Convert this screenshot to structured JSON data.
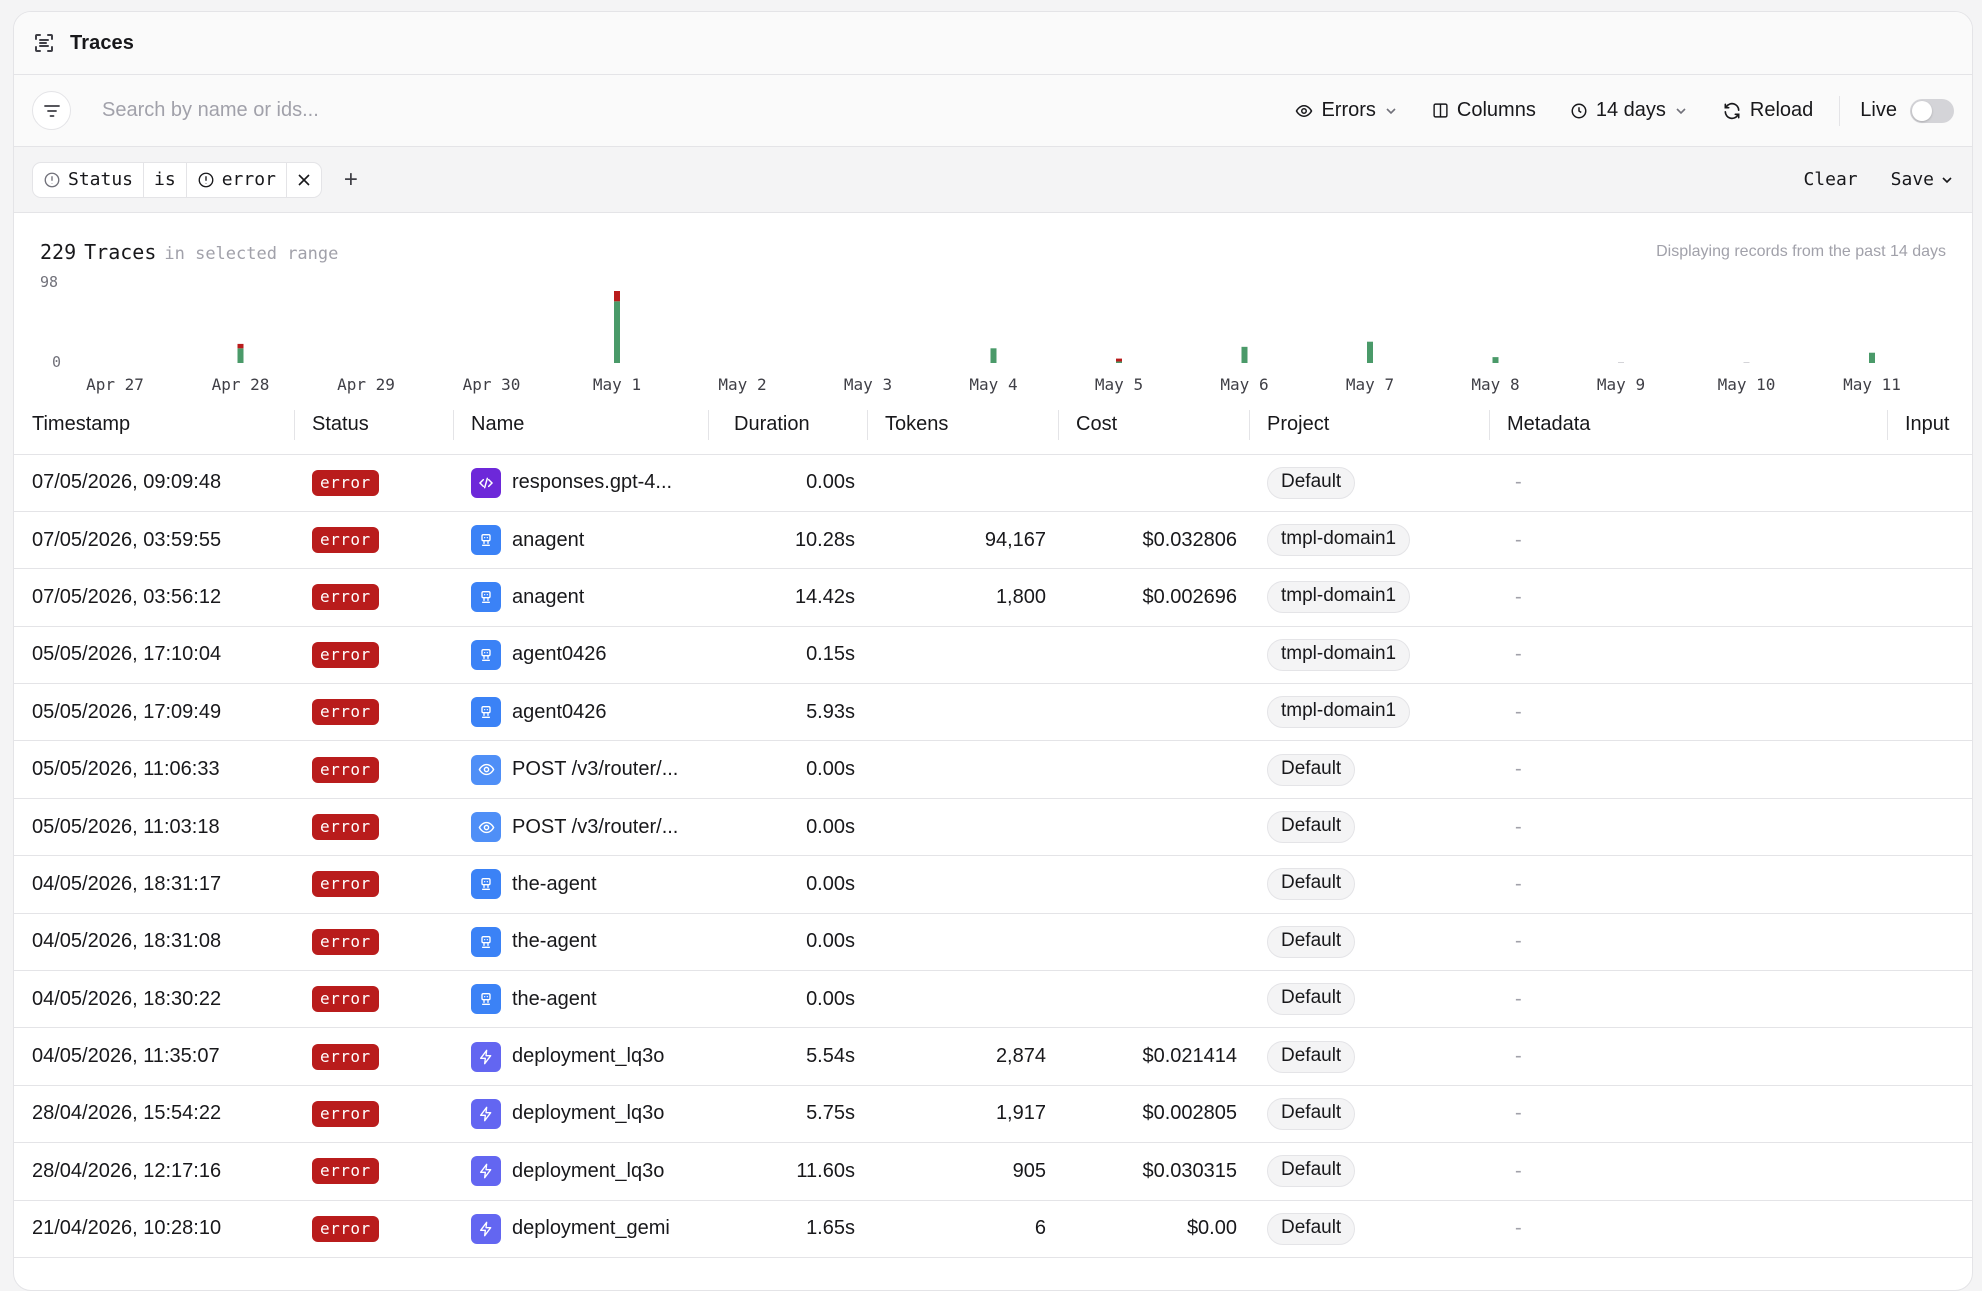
{
  "page": {
    "title": "Traces"
  },
  "toolbar": {
    "search_placeholder": "Search by name or ids...",
    "errors_label": "Errors",
    "columns_label": "Columns",
    "range_label": "14 days",
    "reload_label": "Reload",
    "live_label": "Live",
    "live_on": false
  },
  "filter": {
    "field": "Status",
    "operator": "is",
    "value": "error",
    "add_label": "+",
    "clear_label": "Clear",
    "save_label": "Save"
  },
  "summary": {
    "count": "229",
    "count_label": "Traces",
    "range_note": "in selected range",
    "display_note": "Displaying records from the past 14 days"
  },
  "chart_data": {
    "type": "bar",
    "categories": [
      "Apr 27",
      "Apr 28",
      "Apr 29",
      "Apr 30",
      "May 1",
      "May 2",
      "May 3",
      "May 4",
      "May 5",
      "May 6",
      "May 7",
      "May 8",
      "May 9",
      "May 10",
      "May 11"
    ],
    "series": [
      {
        "values": [
          0,
          20,
          0,
          0,
          84,
          0,
          0,
          20,
          2,
          22,
          29,
          8,
          0,
          0,
          14
        ]
      },
      {
        "values": [
          0,
          6,
          0,
          0,
          14,
          0,
          0,
          0,
          4,
          0,
          0,
          0,
          0,
          0,
          0
        ]
      }
    ],
    "stacked": true,
    "ylim": [
      0,
      98
    ],
    "yticks": [
      "98",
      "0"
    ],
    "colors": [
      "#4a9a69",
      "#b91c1c"
    ],
    "grid": false
  },
  "table": {
    "columns": [
      "Timestamp",
      "Status",
      "Name",
      "Duration",
      "Tokens",
      "Cost",
      "Project",
      "Metadata",
      "Input"
    ],
    "rows": [
      {
        "timestamp": "07/05/2026, 09:09:48",
        "status": "error",
        "icon": "code-icon",
        "name": "responses.gpt-4...",
        "duration": "0.00s",
        "tokens": "",
        "cost": "",
        "project": "Default",
        "metadata": "-"
      },
      {
        "timestamp": "07/05/2026, 03:59:55",
        "status": "error",
        "icon": "agent-icon",
        "name": "anagent",
        "duration": "10.28s",
        "tokens": "94,167",
        "cost": "$0.032806",
        "project": "tmpl-domain1",
        "metadata": "-"
      },
      {
        "timestamp": "07/05/2026, 03:56:12",
        "status": "error",
        "icon": "agent-icon",
        "name": "anagent",
        "duration": "14.42s",
        "tokens": "1,800",
        "cost": "$0.002696",
        "project": "tmpl-domain1",
        "metadata": "-"
      },
      {
        "timestamp": "05/05/2026, 17:10:04",
        "status": "error",
        "icon": "agent-icon",
        "name": "agent0426",
        "duration": "0.15s",
        "tokens": "",
        "cost": "",
        "project": "tmpl-domain1",
        "metadata": "-"
      },
      {
        "timestamp": "05/05/2026, 17:09:49",
        "status": "error",
        "icon": "agent-icon",
        "name": "agent0426",
        "duration": "5.93s",
        "tokens": "",
        "cost": "",
        "project": "tmpl-domain1",
        "metadata": "-"
      },
      {
        "timestamp": "05/05/2026, 11:06:33",
        "status": "error",
        "icon": "eye-icon",
        "name": "POST /v3/router/...",
        "duration": "0.00s",
        "tokens": "",
        "cost": "",
        "project": "Default",
        "metadata": "-"
      },
      {
        "timestamp": "05/05/2026, 11:03:18",
        "status": "error",
        "icon": "eye-icon",
        "name": "POST /v3/router/...",
        "duration": "0.00s",
        "tokens": "",
        "cost": "",
        "project": "Default",
        "metadata": "-"
      },
      {
        "timestamp": "04/05/2026, 18:31:17",
        "status": "error",
        "icon": "agent-icon",
        "name": "the-agent",
        "duration": "0.00s",
        "tokens": "",
        "cost": "",
        "project": "Default",
        "metadata": "-"
      },
      {
        "timestamp": "04/05/2026, 18:31:08",
        "status": "error",
        "icon": "agent-icon",
        "name": "the-agent",
        "duration": "0.00s",
        "tokens": "",
        "cost": "",
        "project": "Default",
        "metadata": "-"
      },
      {
        "timestamp": "04/05/2026, 18:30:22",
        "status": "error",
        "icon": "agent-icon",
        "name": "the-agent",
        "duration": "0.00s",
        "tokens": "",
        "cost": "",
        "project": "Default",
        "metadata": "-"
      },
      {
        "timestamp": "04/05/2026, 11:35:07",
        "status": "error",
        "icon": "bolt-icon",
        "name": "deployment_lq3o",
        "duration": "5.54s",
        "tokens": "2,874",
        "cost": "$0.021414",
        "project": "Default",
        "metadata": "-"
      },
      {
        "timestamp": "28/04/2026, 15:54:22",
        "status": "error",
        "icon": "bolt-icon",
        "name": "deployment_lq3o",
        "duration": "5.75s",
        "tokens": "1,917",
        "cost": "$0.002805",
        "project": "Default",
        "metadata": "-"
      },
      {
        "timestamp": "28/04/2026, 12:17:16",
        "status": "error",
        "icon": "bolt-icon",
        "name": "deployment_lq3o",
        "duration": "11.60s",
        "tokens": "905",
        "cost": "$0.030315",
        "project": "Default",
        "metadata": "-"
      },
      {
        "timestamp": "21/04/2026, 10:28:10",
        "status": "error",
        "icon": "bolt-icon",
        "name": "deployment_gemi",
        "duration": "1.65s",
        "tokens": "6",
        "cost": "$0.00",
        "project": "Default",
        "metadata": "-"
      }
    ]
  }
}
